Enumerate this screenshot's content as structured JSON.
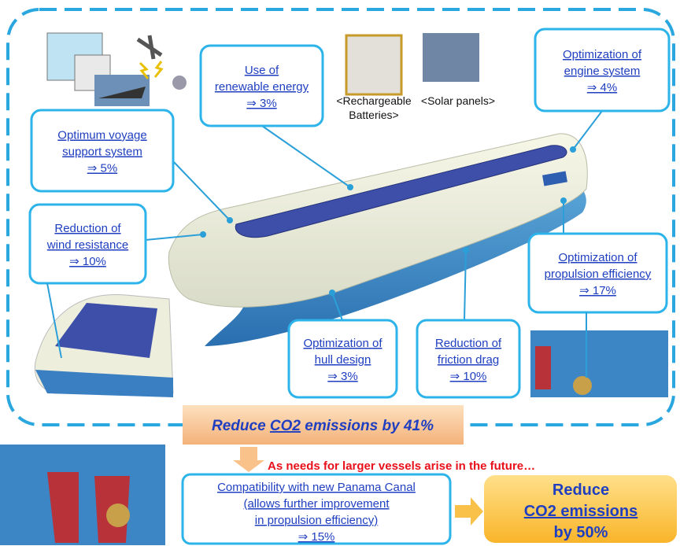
{
  "callouts": [
    {
      "lines": [
        "Use of",
        "renewable energy",
        "⇒ 3%"
      ]
    },
    {
      "lines": [
        "Optimization of",
        "engine system",
        "⇒ 4%"
      ]
    },
    {
      "lines": [
        "Optimum voyage",
        "support system",
        "⇒ 5%"
      ]
    },
    {
      "lines": [
        "Reduction of",
        "wind resistance",
        "⇒ 10%"
      ]
    },
    {
      "lines": [
        "Optimization of",
        "propulsion efficiency",
        "⇒ 17%"
      ]
    },
    {
      "lines": [
        "Optimization of",
        "hull design",
        "⇒ 3%"
      ]
    },
    {
      "lines": [
        "Reduction of",
        "friction drag",
        "⇒ 10%"
      ]
    }
  ],
  "image_labels": {
    "batteries": [
      "<Rechargeable",
      "Batteries>"
    ],
    "solar": "<Solar panels>"
  },
  "summary": {
    "before": "Reduce",
    "co2": "CO2",
    "after": "emissions by 41%"
  },
  "future_note": "As needs for larger vessels arise in the future…",
  "panama": {
    "lines": [
      "Compatibility with new Panama Canal",
      "(allows further improvement",
      "in propulsion efficiency)",
      "⇒ 15%"
    ]
  },
  "final": {
    "lines": [
      "Reduce",
      "CO2 emissions",
      "by 50%"
    ]
  }
}
